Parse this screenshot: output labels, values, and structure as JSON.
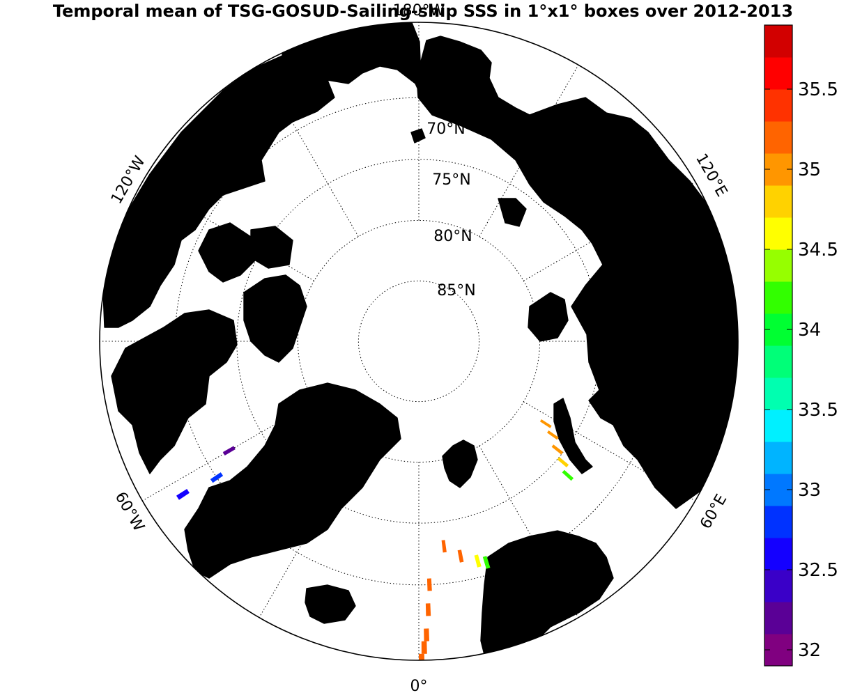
{
  "title": "Temporal mean of TSG-GOSUD-Sailing-ship SSS in 1°x1° boxes over 2012-2013",
  "map": {
    "projection": "north-polar-stereographic",
    "ocean_color": "#ffffff",
    "land_color": "#808080",
    "lat_labels": [
      "70°N",
      "75°N",
      "80°N",
      "85°N"
    ],
    "lon_labels": {
      "top": "180°W",
      "upper_left": "120°W",
      "upper_right": "120°E",
      "lower_left": "60°W",
      "lower_right": "60°E",
      "bottom": "0°"
    }
  },
  "colorbar": {
    "min": 31.9,
    "max": 35.9,
    "step": 0.2,
    "ticks": [
      "32",
      "32.5",
      "33",
      "33.5",
      "34",
      "34.5",
      "35",
      "35.5"
    ],
    "colors": [
      "#800080",
      "#5a0096",
      "#3a00c8",
      "#1400ff",
      "#0032ff",
      "#0078ff",
      "#00b4ff",
      "#00f0ff",
      "#00ffb0",
      "#00ff78",
      "#00ff32",
      "#32ff00",
      "#96ff00",
      "#ffff00",
      "#ffd200",
      "#ff9600",
      "#ff6400",
      "#ff3200",
      "#ff0000",
      "#d20000"
    ]
  },
  "chart_data": {
    "type": "heatmap",
    "title": "Temporal mean of TSG-GOSUD-Sailing-ship SSS in 1°x1° boxes over 2012-2013",
    "zlim": [
      31.9,
      35.9
    ],
    "points": [
      {
        "lat": 72,
        "lon": -60,
        "sss": 32.1
      },
      {
        "lat": 70,
        "lon": -56,
        "sss": 32.8
      },
      {
        "lat": 67,
        "lon": -57,
        "sss": 32.6
      },
      {
        "lat": 60.5,
        "lon": -6,
        "sss": 35.2
      },
      {
        "lat": 61,
        "lon": -4,
        "sss": 35.2
      },
      {
        "lat": 62,
        "lon": -2,
        "sss": 35.3
      },
      {
        "lat": 63,
        "lon": -1,
        "sss": 35.3
      },
      {
        "lat": 64,
        "lon": 0.5,
        "sss": 35.3
      },
      {
        "lat": 65,
        "lon": 1,
        "sss": 35.3
      },
      {
        "lat": 66,
        "lon": 1.5,
        "sss": 35.3
      },
      {
        "lat": 68,
        "lon": 2,
        "sss": 35.2
      },
      {
        "lat": 70,
        "lon": 2.5,
        "sss": 35.1
      },
      {
        "lat": 62.5,
        "lon": -9,
        "sss": 34.9
      },
      {
        "lat": 73,
        "lon": 7,
        "sss": 35.3
      },
      {
        "lat": 72,
        "lon": 11,
        "sss": 35.2
      },
      {
        "lat": 71.3,
        "lon": 15,
        "sss": 34.6
      },
      {
        "lat": 71,
        "lon": 17,
        "sss": 34.2
      },
      {
        "lat": 73.5,
        "lon": 48,
        "sss": 34.3
      },
      {
        "lat": 74.5,
        "lon": 50,
        "sss": 34.8
      },
      {
        "lat": 75.5,
        "lon": 52,
        "sss": 34.9
      },
      {
        "lat": 76.5,
        "lon": 55,
        "sss": 35.0
      },
      {
        "lat": 77.5,
        "lon": 57,
        "sss": 34.9
      }
    ]
  }
}
